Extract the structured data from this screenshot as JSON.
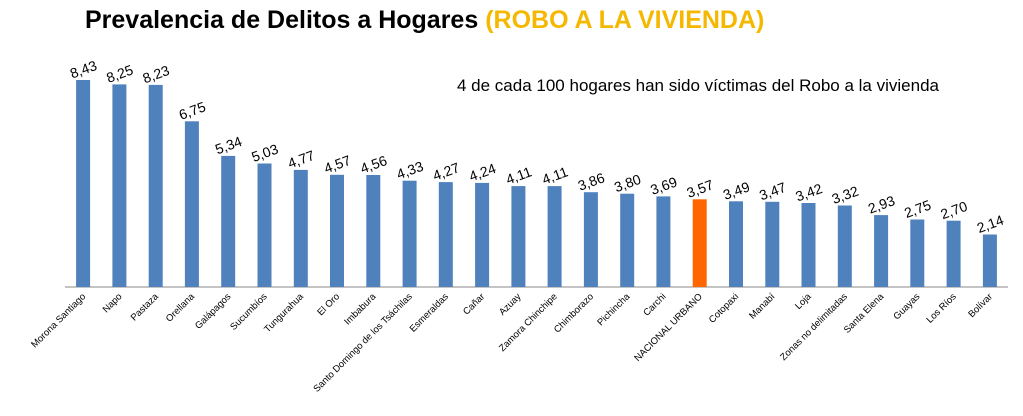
{
  "title": {
    "main": "Prevalencia de Delitos a Hogares",
    "highlight": "(ROBO A LA VIVIENDA)",
    "highlight_color": "#f5b800"
  },
  "annotation": "4 de cada 100 hogares han sido víctimas del Robo a la vivienda",
  "chart_data": {
    "type": "bar",
    "title": "Prevalencia de Delitos a Hogares (ROBO A LA VIVIENDA)",
    "xlabel": "",
    "ylabel": "",
    "ylim": [
      0,
      8.43
    ],
    "grid": false,
    "legend": "none",
    "value_format": "comma-decimal",
    "colors": {
      "default": "#4f81bd",
      "highlight": "#ff6600"
    },
    "highlight_category": "NACIONAL URBANO",
    "categories": [
      "Morona Santiago",
      "Napo",
      "Pastaza",
      "Orellana",
      "Galápagos",
      "Sucumbíos",
      "Tungurahua",
      "El Oro",
      "Imbabura",
      "Santo Domingo de los Tsáchilas",
      "Esmeraldas",
      "Cañar",
      "Azuay",
      "Zamora Chinchipe",
      "Chimborazo",
      "Pichincha",
      "Carchi",
      "NACIONAL URBANO",
      "Cotopaxi",
      "Manabí",
      "Loja",
      "Zonas no delimitadas",
      "Santa Elena",
      "Guayas",
      "Los Ríos",
      "Bolívar"
    ],
    "values": [
      8.43,
      8.25,
      8.23,
      6.75,
      5.34,
      5.03,
      4.77,
      4.57,
      4.56,
      4.33,
      4.27,
      4.24,
      4.11,
      4.11,
      3.86,
      3.8,
      3.69,
      3.57,
      3.49,
      3.47,
      3.42,
      3.32,
      2.93,
      2.75,
      2.7,
      2.14
    ],
    "labels": [
      "8,43",
      "8,25",
      "8,23",
      "6,75",
      "5,34",
      "5,03",
      "4,77",
      "4,57",
      "4,56",
      "4,33",
      "4,27",
      "4,24",
      "4,11",
      "4,11",
      "3,86",
      "3,80",
      "3,69",
      "3,57",
      "3,49",
      "3,47",
      "3,42",
      "3,32",
      "2,93",
      "2,75",
      "2,70",
      "2,14"
    ]
  }
}
